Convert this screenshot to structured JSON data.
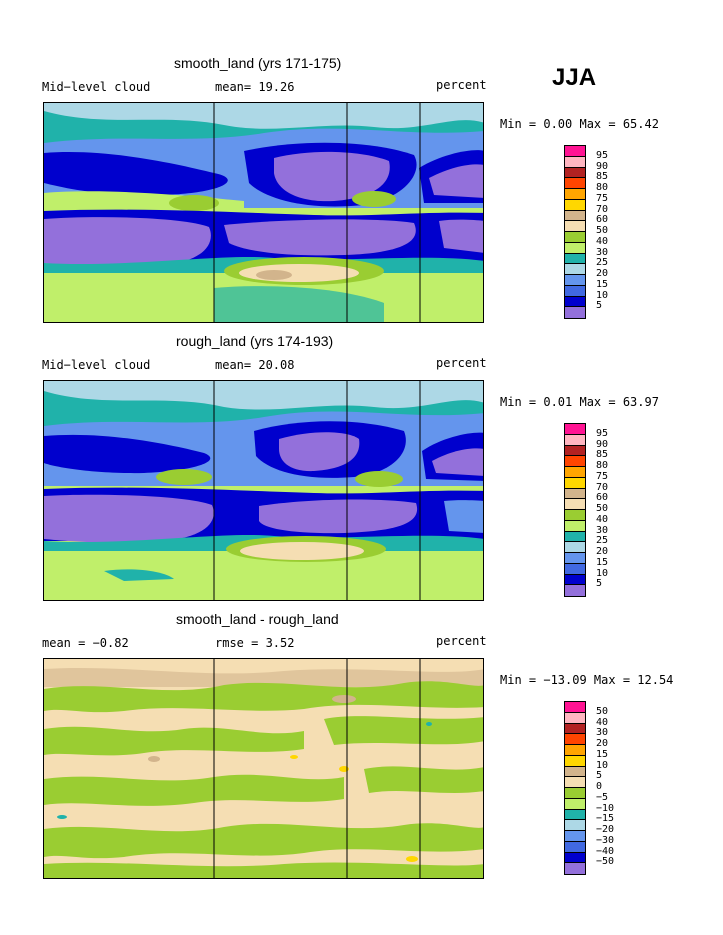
{
  "season": "JJA",
  "panels": [
    {
      "title": "smooth_land (yrs 171-175)",
      "left_label": "Mid−level cloud",
      "center_label": "mean=   19.26",
      "right_label": "percent",
      "minmax": "Min =    0.00 Max =   65.42",
      "colorbar_labels": [
        "95",
        "90",
        "85",
        "80",
        "75",
        "70",
        "60",
        "50",
        "40",
        "30",
        "25",
        "20",
        "15",
        "10",
        "5"
      ]
    },
    {
      "title": "rough_land (yrs 174-193)",
      "left_label": "Mid−level cloud",
      "center_label": "mean=   20.08",
      "right_label": "percent",
      "minmax": "Min =    0.01 Max =   63.97",
      "colorbar_labels": [
        "95",
        "90",
        "85",
        "80",
        "75",
        "70",
        "60",
        "50",
        "40",
        "30",
        "25",
        "20",
        "15",
        "10",
        "5"
      ]
    },
    {
      "title": "smooth_land - rough_land",
      "left_label": "mean =   −0.82",
      "center_label": "rmse =    3.52",
      "right_label": "percent",
      "minmax": "Min = −13.09 Max =   12.54",
      "colorbar_labels": [
        "50",
        "40",
        "30",
        "20",
        "15",
        "10",
        "5",
        "0",
        "−5",
        "−10",
        "−15",
        "−20",
        "−30",
        "−40",
        "−50"
      ]
    }
  ],
  "colorbar_colors": [
    "#ff1493",
    "#ffb6c1",
    "#b22222",
    "#ff4500",
    "#ffa500",
    "#ffd700",
    "#d2b48c",
    "#f5deb3",
    "#9acd32",
    "#c0ef6a",
    "#20b2aa",
    "#add8e6",
    "#6495ed",
    "#4169e1",
    "#0000cd",
    "#9370db"
  ],
  "chart_data": {
    "type": "heatmap",
    "contour_levels_mean": [
      5,
      10,
      15,
      20,
      25,
      30,
      40,
      50,
      60,
      70,
      75,
      80,
      85,
      90,
      95
    ],
    "contour_levels_diff": [
      -50,
      -40,
      -30,
      -20,
      -15,
      -10,
      -5,
      0,
      5,
      10,
      15,
      20,
      30,
      40,
      50
    ],
    "panels": [
      {
        "title": "smooth_land (yrs 171-175)",
        "variable": "Mid-level cloud",
        "units": "percent",
        "mean": 19.26,
        "min": 0.0,
        "max": 65.42
      },
      {
        "title": "rough_land (yrs 174-193)",
        "variable": "Mid-level cloud",
        "units": "percent",
        "mean": 20.08,
        "min": 0.01,
        "max": 63.97
      },
      {
        "title": "smooth_land - rough_land",
        "units": "percent",
        "mean": -0.82,
        "rmse": 3.52,
        "min": -13.09,
        "max": 12.54
      }
    ]
  }
}
